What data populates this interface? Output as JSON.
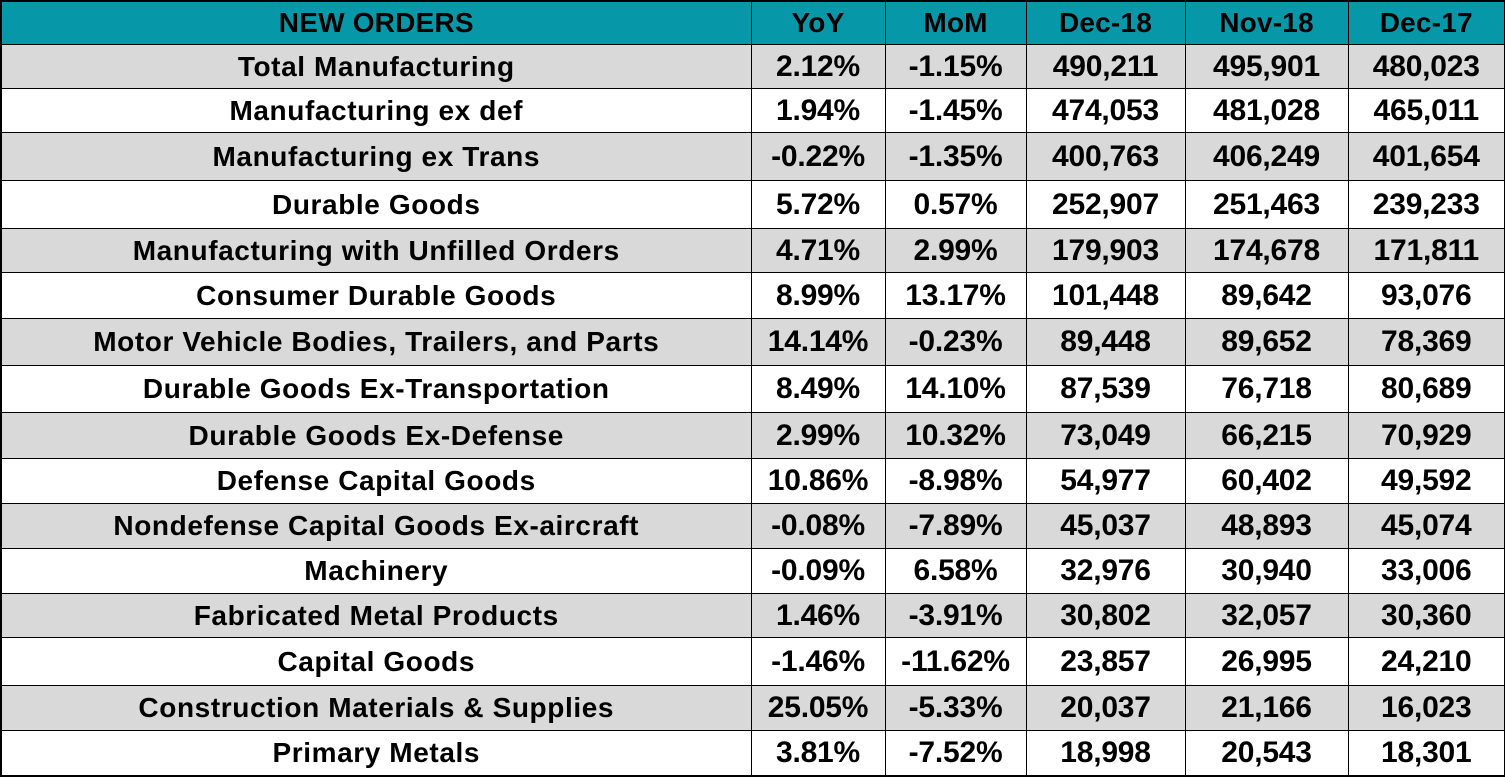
{
  "table": {
    "headers": [
      "NEW ORDERS",
      "YoY",
      "MoM",
      "Dec-18",
      "Nov-18",
      "Dec-17"
    ],
    "rows": [
      {
        "label": "Total Manufacturing",
        "yoy": "2.12%",
        "mom": "-1.15%",
        "dec18": "490,211",
        "nov18": "495,901",
        "dec17": "480,023"
      },
      {
        "label": "Manufacturing ex def",
        "yoy": "1.94%",
        "mom": "-1.45%",
        "dec18": "474,053",
        "nov18": "481,028",
        "dec17": "465,011"
      },
      {
        "label": "Manufacturing ex Trans",
        "yoy": "-0.22%",
        "mom": "-1.35%",
        "dec18": "400,763",
        "nov18": "406,249",
        "dec17": "401,654"
      },
      {
        "label": "Durable Goods",
        "yoy": "5.72%",
        "mom": "0.57%",
        "dec18": "252,907",
        "nov18": "251,463",
        "dec17": "239,233"
      },
      {
        "label": "Manufacturing with Unfilled Orders",
        "yoy": "4.71%",
        "mom": "2.99%",
        "dec18": "179,903",
        "nov18": "174,678",
        "dec17": "171,811"
      },
      {
        "label": "Consumer Durable Goods",
        "yoy": "8.99%",
        "mom": "13.17%",
        "dec18": "101,448",
        "nov18": "89,642",
        "dec17": "93,076"
      },
      {
        "label": "Motor Vehicle Bodies, Trailers, and Parts",
        "yoy": "14.14%",
        "mom": "-0.23%",
        "dec18": "89,448",
        "nov18": "89,652",
        "dec17": "78,369"
      },
      {
        "label": "Durable Goods Ex-Transportation",
        "yoy": "8.49%",
        "mom": "14.10%",
        "dec18": "87,539",
        "nov18": "76,718",
        "dec17": "80,689"
      },
      {
        "label": "Durable Goods Ex-Defense",
        "yoy": "2.99%",
        "mom": "10.32%",
        "dec18": "73,049",
        "nov18": "66,215",
        "dec17": "70,929"
      },
      {
        "label": "Defense Capital Goods",
        "yoy": "10.86%",
        "mom": "-8.98%",
        "dec18": "54,977",
        "nov18": "60,402",
        "dec17": "49,592"
      },
      {
        "label": "Nondefense Capital Goods Ex-aircraft",
        "yoy": "-0.08%",
        "mom": "-7.89%",
        "dec18": "45,037",
        "nov18": "48,893",
        "dec17": "45,074"
      },
      {
        "label": "Machinery",
        "yoy": "-0.09%",
        "mom": "6.58%",
        "dec18": "32,976",
        "nov18": "30,940",
        "dec17": "33,006"
      },
      {
        "label": "Fabricated Metal Products",
        "yoy": "1.46%",
        "mom": "-3.91%",
        "dec18": "30,802",
        "nov18": "32,057",
        "dec17": "30,360"
      },
      {
        "label": "Capital Goods",
        "yoy": "-1.46%",
        "mom": "-11.62%",
        "dec18": "23,857",
        "nov18": "26,995",
        "dec17": "24,210"
      },
      {
        "label": "Construction Materials & Supplies",
        "yoy": "25.05%",
        "mom": "-5.33%",
        "dec18": "20,037",
        "nov18": "21,166",
        "dec17": "16,023"
      },
      {
        "label": "Primary Metals",
        "yoy": "3.81%",
        "mom": "-7.52%",
        "dec18": "18,998",
        "nov18": "20,543",
        "dec17": "18,301"
      }
    ]
  },
  "colors": {
    "header_bg": "#0697a9",
    "row_alt_bg": "#d9d9d9",
    "row_bg": "#ffffff",
    "text": "#000000",
    "border": "#000000"
  }
}
